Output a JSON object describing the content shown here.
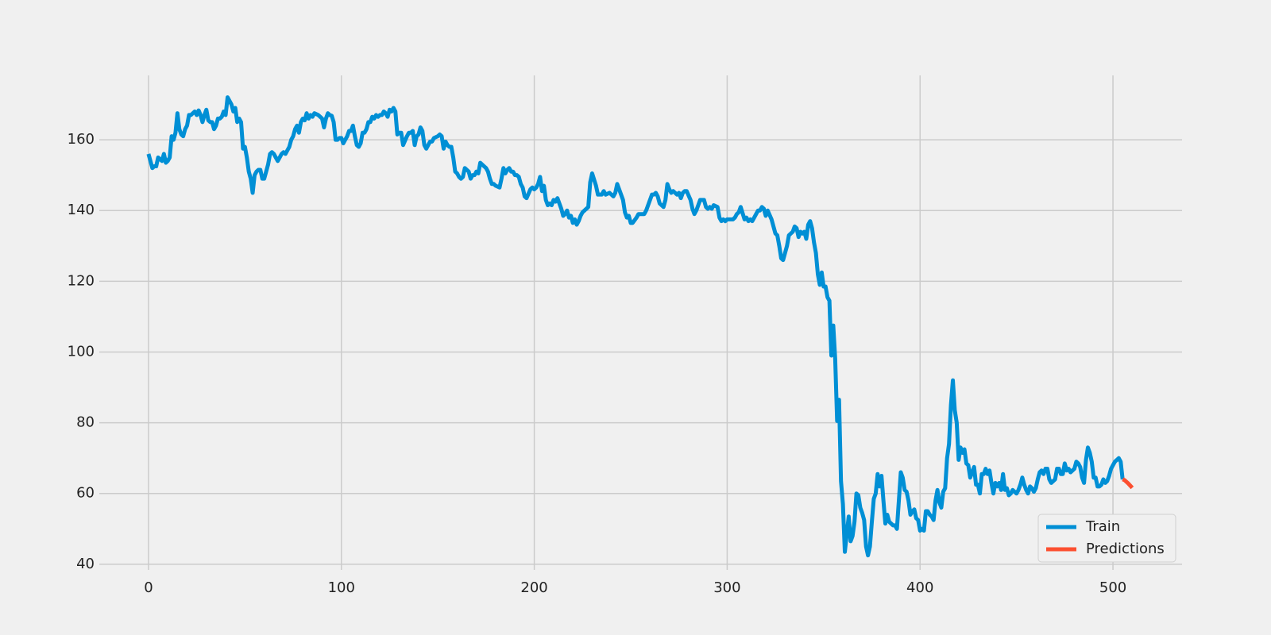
{
  "chart_data": {
    "type": "line",
    "xlim": [
      -25.5,
      535.8
    ],
    "ylim": [
      38.4,
      178.2
    ],
    "xticks": [
      0,
      100,
      200,
      300,
      400,
      500
    ],
    "yticks": [
      40,
      60,
      80,
      100,
      120,
      140,
      160
    ],
    "grid": true,
    "legend": "lower right",
    "series": [
      {
        "name": "Train",
        "color": "#008fd5",
        "x": [
          0,
          1,
          2,
          3,
          4,
          5,
          6,
          7,
          8,
          9,
          10,
          11,
          12,
          13,
          14,
          15,
          16,
          17,
          18,
          19,
          20,
          21,
          22,
          23,
          24,
          25,
          26,
          27,
          28,
          29,
          30,
          31,
          32,
          33,
          34,
          35,
          36,
          37,
          38,
          39,
          40,
          41,
          43,
          44,
          45,
          46,
          47,
          48,
          49,
          50,
          51,
          52,
          53,
          54,
          55,
          56,
          57,
          58,
          59,
          60,
          61,
          62,
          63,
          64,
          65,
          66,
          67,
          68,
          69,
          70,
          71,
          72,
          73,
          74,
          75,
          76,
          77,
          78,
          79,
          80,
          81,
          82,
          83,
          84,
          85,
          86,
          88,
          89,
          90,
          91,
          92,
          93,
          94,
          95,
          96,
          97,
          98,
          99,
          100,
          101,
          102,
          103,
          104,
          105,
          106,
          107,
          108,
          109,
          110,
          111,
          112,
          113,
          114,
          115,
          116,
          117,
          118,
          119,
          120,
          121,
          122,
          123,
          124,
          125,
          126,
          127,
          128,
          129,
          130,
          131,
          132,
          134,
          135,
          136,
          137,
          138,
          139,
          140,
          141,
          142,
          143,
          144,
          145,
          146,
          147,
          148,
          150,
          151,
          152,
          153,
          154,
          155,
          156,
          157,
          158,
          159,
          160,
          161,
          162,
          163,
          164,
          166,
          167,
          168,
          169,
          170,
          171,
          172,
          173,
          174,
          175,
          176,
          177,
          178,
          179,
          180,
          182,
          183,
          184,
          185,
          186,
          187,
          188,
          189,
          190,
          191,
          192,
          193,
          194,
          195,
          196,
          198,
          199,
          200,
          201,
          202,
          203,
          204,
          205,
          206,
          207,
          208,
          209,
          210,
          211,
          212,
          214,
          215,
          216,
          217,
          218,
          219,
          220,
          221,
          222,
          223,
          224,
          225,
          226,
          227,
          228,
          229,
          230,
          232,
          233,
          234,
          235,
          236,
          237,
          239,
          240,
          241,
          242,
          243,
          244,
          246,
          247,
          248,
          249,
          250,
          251,
          253,
          254,
          255,
          256,
          257,
          258,
          260,
          261,
          262,
          263,
          264,
          265,
          267,
          268,
          269,
          270,
          271,
          272,
          274,
          275,
          276,
          277,
          278,
          279,
          281,
          282,
          283,
          284,
          285,
          286,
          288,
          289,
          290,
          291,
          292,
          293,
          295,
          296,
          297,
          298,
          299,
          300,
          302,
          303,
          304,
          305,
          306,
          307,
          309,
          310,
          311,
          312,
          313,
          314,
          316,
          317,
          318,
          319,
          320,
          321,
          323,
          324,
          325,
          326,
          327,
          328,
          329,
          331,
          332,
          333,
          334,
          335,
          336,
          337,
          338,
          339,
          340,
          341,
          342,
          343,
          344,
          345,
          346,
          347,
          348,
          349,
          350,
          351,
          352,
          353,
          354,
          355,
          356,
          357,
          358,
          359,
          360,
          361,
          363,
          364,
          365,
          366,
          367,
          368,
          369,
          370,
          371,
          372,
          373,
          374,
          375,
          376,
          377,
          378,
          379,
          380,
          381,
          382,
          383,
          384,
          385,
          386,
          387,
          388,
          389,
          390,
          391,
          392,
          393,
          394,
          395,
          396,
          397,
          398,
          399,
          400,
          401,
          402,
          403,
          404,
          405,
          406,
          407,
          408,
          409,
          410,
          411,
          412,
          413,
          414,
          415,
          416,
          417,
          418,
          419,
          420,
          421,
          422,
          423,
          424,
          425,
          426,
          427,
          428,
          429,
          430,
          431,
          432,
          433,
          434,
          435,
          436,
          437,
          438,
          439,
          440,
          441,
          442,
          443,
          444,
          445,
          446,
          447,
          448,
          449,
          450,
          451,
          452,
          453,
          454,
          455,
          456,
          457,
          458,
          459,
          460,
          461,
          462,
          463,
          464,
          465,
          466,
          467,
          468,
          469,
          470,
          471,
          472,
          473,
          474,
          475,
          476,
          477,
          478,
          479,
          480,
          481,
          482,
          483,
          484,
          485,
          486,
          487,
          488,
          489,
          490,
          491,
          492,
          493,
          494,
          495,
          496,
          497,
          498,
          499,
          500,
          501,
          502,
          503,
          504,
          505
        ],
        "values": [
          156,
          154,
          152,
          152.5,
          152.5,
          155,
          154.5,
          154,
          156,
          153.5,
          154,
          155,
          161,
          160,
          162,
          167.5,
          163,
          161.5,
          161,
          163,
          164,
          167,
          167,
          167.5,
          168,
          167,
          168.3,
          167,
          165,
          167,
          168.5,
          165.5,
          165,
          165,
          163,
          164,
          166,
          166,
          166.5,
          168,
          167,
          172,
          170,
          168,
          169,
          165,
          166,
          165,
          157.5,
          158,
          155,
          151,
          149,
          145,
          150,
          151,
          151.5,
          151.5,
          149,
          149,
          151,
          153,
          156,
          156.5,
          156,
          155,
          154,
          155,
          156,
          156.5,
          156,
          157,
          158,
          160,
          161,
          163,
          164,
          162,
          165,
          166,
          165.5,
          167.5,
          166,
          167,
          166.5,
          167.5,
          167,
          166.5,
          166,
          163.5,
          166,
          167.5,
          167,
          166.8,
          165,
          160,
          160,
          160.5,
          160.5,
          159,
          160,
          161,
          162.5,
          162.5,
          164,
          161,
          158.5,
          158,
          159,
          162,
          162,
          163,
          165,
          165,
          166.5,
          166,
          167,
          166.5,
          167,
          167,
          168,
          167.5,
          166.5,
          168.5,
          168,
          169,
          168,
          161.5,
          162,
          162,
          158.5,
          161,
          162,
          162,
          162.5,
          158.5,
          161,
          161.5,
          163.5,
          162.5,
          158.5,
          157.5,
          158.5,
          159.5,
          159.5,
          160.5,
          161,
          161.5,
          161,
          157.5,
          159.5,
          158.5,
          158,
          158,
          155,
          151,
          150.5,
          149.5,
          149,
          149.5,
          152,
          151,
          149,
          150,
          150,
          151,
          150.5,
          153.5,
          153,
          152.5,
          152,
          151,
          149,
          147.5,
          147.5,
          147,
          146.5,
          149,
          152,
          150.5,
          151.5,
          152,
          151,
          151,
          150,
          150,
          149.5,
          147.5,
          146.5,
          144,
          143.5,
          146,
          146.5,
          146,
          146.5,
          147.5,
          149.5,
          145.5,
          147,
          143,
          141.5,
          142,
          141.5,
          143,
          142.5,
          143.5,
          140.5,
          138.5,
          139,
          140,
          138,
          138.5,
          136.5,
          137.5,
          136,
          137,
          138.5,
          139.5,
          140,
          140.5,
          141,
          148,
          150.5,
          147,
          144.5,
          144.5,
          144.5,
          145.5,
          144.5,
          145,
          144.5,
          144,
          145,
          147.5,
          146,
          143,
          139.5,
          138,
          138.5,
          136.5,
          136.5,
          138,
          139,
          139,
          139,
          139,
          140,
          143,
          144.5,
          144.5,
          145,
          144,
          142,
          141,
          143,
          147.5,
          146,
          145,
          145.5,
          144.5,
          145,
          143.5,
          145,
          145.5,
          145.5,
          143,
          140.5,
          139,
          140,
          141.5,
          143,
          143,
          141,
          140.5,
          141,
          140.5,
          141.5,
          141,
          138,
          137,
          137.5,
          137,
          137.5,
          137.5,
          137.5,
          138,
          139,
          139.5,
          141,
          137.5,
          138,
          137,
          137.5,
          137,
          138,
          140,
          140,
          141,
          140.5,
          138.5,
          140,
          137.5,
          135.5,
          133.5,
          133,
          130,
          126.5,
          126,
          130,
          133,
          133.5,
          134,
          135.5,
          135,
          132.5,
          134,
          133.5,
          134,
          132,
          136,
          137,
          135,
          131,
          128,
          122,
          119,
          122.5,
          118.5,
          118.5,
          115.5,
          114.5,
          99,
          107.5,
          98,
          80.5,
          86.5,
          63.5,
          57,
          43.5,
          53.5,
          46.5,
          48,
          52,
          60,
          59.5,
          56,
          54.5,
          52.5,
          45,
          42.5,
          45,
          52,
          58.5,
          60,
          65.5,
          62,
          65,
          58,
          51.5,
          54,
          52,
          51.5,
          51,
          51,
          50,
          58,
          66,
          64.5,
          61,
          60.5,
          58,
          54,
          55,
          55.5,
          53,
          52.5,
          49.5,
          50,
          49.5,
          55,
          55,
          54,
          53.5,
          52.5,
          58,
          61,
          57.5,
          56,
          60.5,
          61.5,
          70,
          74,
          85,
          92,
          83.5,
          80,
          69.5,
          73,
          71.5,
          72.5,
          68.5,
          68,
          64.5,
          66,
          67.5,
          62.5,
          62.5,
          60,
          65.5,
          65.5,
          67,
          65.5,
          66.5,
          63,
          60,
          63,
          62,
          63,
          61,
          65.5,
          61,
          61.5,
          59.5,
          60,
          61,
          60.5,
          60,
          61,
          62.5,
          64.5,
          62.5,
          61,
          60,
          62,
          61.5,
          60.5,
          61.5,
          64,
          66,
          66.5,
          65.5,
          67,
          67,
          64,
          63,
          63.5,
          64,
          67,
          67,
          65.5,
          65.5,
          68.5,
          66.5,
          67,
          66,
          66.5,
          67,
          69,
          68.5,
          67.5,
          64.5,
          63,
          69.5,
          73,
          71.5,
          69,
          64.5,
          64.5,
          62,
          62,
          62.5,
          64,
          63,
          63.5,
          65,
          67,
          68,
          69,
          69.5,
          70,
          69,
          64
        ]
      },
      {
        "name": "Predictions",
        "color": "#fc4f30",
        "x": [
          505,
          506,
          507,
          508,
          509,
          510
        ],
        "values": [
          64,
          63.8,
          63.3,
          62.8,
          62.2,
          61.6
        ]
      }
    ]
  }
}
